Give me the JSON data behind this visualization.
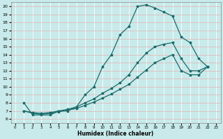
{
  "xlabel": "Humidex (Indice chaleur)",
  "bg_color": "#c8eaea",
  "grid_major_color": "#e8a0a0",
  "grid_minor_color": "#ffffff",
  "line_color": "#1a6b6b",
  "xlim": [
    -0.5,
    23.5
  ],
  "ylim": [
    5.5,
    20.5
  ],
  "xticks": [
    0,
    1,
    2,
    3,
    4,
    5,
    6,
    7,
    8,
    9,
    10,
    11,
    12,
    13,
    14,
    15,
    16,
    17,
    18,
    19,
    20,
    21,
    22,
    23
  ],
  "yticks": [
    6,
    7,
    8,
    9,
    10,
    11,
    12,
    13,
    14,
    15,
    16,
    17,
    18,
    19,
    20
  ],
  "line1_x": [
    1,
    2,
    3,
    4,
    5,
    6,
    7,
    8,
    9,
    10,
    11,
    12,
    13,
    14,
    15,
    16,
    17,
    18,
    19,
    20,
    21,
    22
  ],
  "line1_y": [
    8,
    6.5,
    6.5,
    6.5,
    7,
    7,
    7.5,
    9,
    10,
    12.5,
    14,
    16.5,
    17.5,
    20,
    20.2,
    19.8,
    19.3,
    18.8,
    16.2,
    15.5,
    13.5,
    12.5
  ],
  "line2_x": [
    1,
    2,
    3,
    4,
    5,
    6,
    7,
    8,
    9,
    10,
    11,
    12,
    13,
    14,
    15,
    16,
    17,
    18,
    19,
    20,
    21,
    22
  ],
  "line2_y": [
    7,
    6.8,
    6.7,
    6.8,
    7,
    7.2,
    7.5,
    8.0,
    8.5,
    9.2,
    9.8,
    10.5,
    11.5,
    13.0,
    14.2,
    15.0,
    15.3,
    15.5,
    13.5,
    12.0,
    12.0,
    12.5
  ],
  "line3_x": [
    1,
    2,
    3,
    4,
    5,
    6,
    7,
    8,
    9,
    10,
    11,
    12,
    13,
    14,
    15,
    16,
    17,
    18,
    19,
    20,
    21,
    22
  ],
  "line3_y": [
    7,
    6.7,
    6.6,
    6.7,
    6.9,
    7.1,
    7.3,
    7.7,
    8.1,
    8.6,
    9.1,
    9.7,
    10.3,
    11.2,
    12.1,
    13.0,
    13.5,
    14.0,
    12.0,
    11.5,
    11.5,
    12.5
  ]
}
